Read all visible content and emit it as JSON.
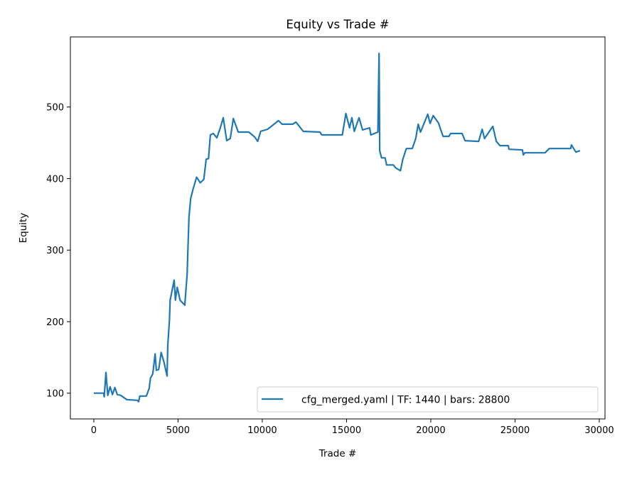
{
  "chart_data": {
    "type": "line",
    "title": "Equity vs Trade #",
    "xlabel": "Trade #",
    "ylabel": "Equity",
    "xlim": [
      -1390,
      30340
    ],
    "ylim": [
      64,
      598
    ],
    "xticks": [
      0,
      5000,
      10000,
      15000,
      20000,
      25000,
      30000
    ],
    "yticks": [
      100,
      200,
      300,
      400,
      500
    ],
    "grid": false,
    "legend_position": "lower-right",
    "series": [
      {
        "name": "cfg_merged.yaml | TF: 1440 | bars: 28800",
        "color": "#1f77b4",
        "x": [
          0,
          590,
          620,
          720,
          830,
          970,
          1110,
          1250,
          1390,
          1600,
          1955,
          2590,
          2660,
          2730,
          3120,
          3290,
          3360,
          3500,
          3640,
          3710,
          3850,
          4000,
          4160,
          4350,
          4390,
          4490,
          4530,
          4770,
          4840,
          4950,
          5120,
          5400,
          5540,
          5650,
          5750,
          5890,
          6100,
          6320,
          6530,
          6670,
          6810,
          6920,
          7090,
          7300,
          7510,
          7680,
          7890,
          8100,
          8280,
          8570,
          9200,
          9550,
          9730,
          9900,
          10320,
          10960,
          11170,
          11800,
          12000,
          12430,
          13420,
          13530,
          14750,
          14960,
          15180,
          15320,
          15460,
          15740,
          15950,
          16370,
          16440,
          16860,
          16930,
          16970,
          17080,
          17290,
          17380,
          17780,
          17920,
          18200,
          18340,
          18550,
          18900,
          19110,
          19250,
          19390,
          19820,
          19960,
          20140,
          20450,
          20730,
          21080,
          21180,
          21860,
          22030,
          22840,
          23050,
          23190,
          23680,
          23890,
          24110,
          24600,
          24640,
          25440,
          25490,
          25580,
          26780,
          27030,
          28300,
          28350,
          28610,
          28860
        ],
        "y": [
          100,
          100,
          95,
          129,
          97,
          109,
          98,
          108,
          98,
          97,
          91,
          90,
          88,
          96,
          96,
          107,
          121,
          127,
          155,
          132,
          133,
          157,
          144,
          124,
          167,
          203,
          230,
          258,
          230,
          248,
          230,
          223,
          266,
          346,
          372,
          385,
          402,
          394,
          399,
          427,
          428,
          461,
          463,
          457,
          471,
          485,
          453,
          456,
          484,
          465,
          465,
          458,
          452,
          466,
          469,
          481,
          476,
          476,
          479,
          466,
          465,
          461,
          461,
          491,
          471,
          485,
          466,
          485,
          468,
          471,
          461,
          465,
          575,
          439,
          429,
          429,
          419,
          419,
          415,
          411,
          427,
          442,
          442,
          456,
          476,
          465,
          490,
          477,
          488,
          478,
          459,
          459,
          463,
          463,
          453,
          452,
          469,
          456,
          473,
          452,
          446,
          446,
          441,
          440,
          433,
          436,
          436,
          442,
          442,
          447,
          437,
          439
        ]
      }
    ]
  }
}
